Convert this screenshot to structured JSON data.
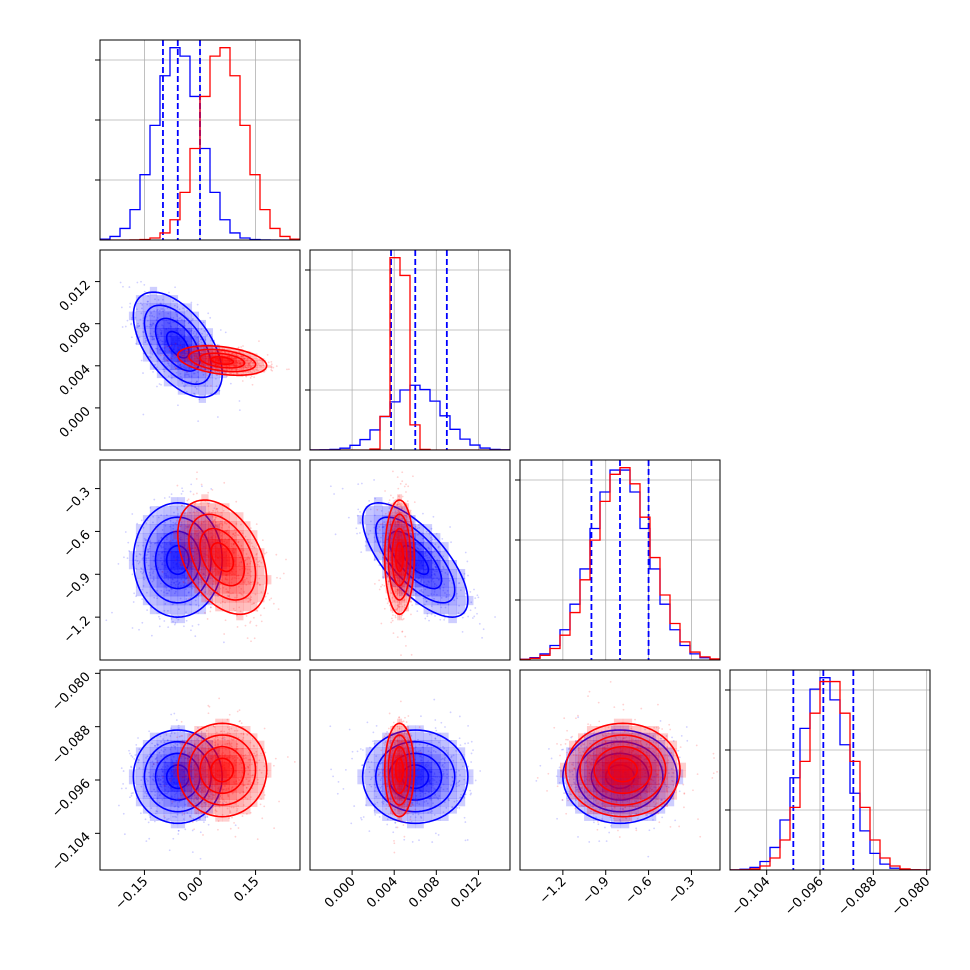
{
  "chart_data": {
    "type": "corner",
    "colors": {
      "blue": "#0000ff",
      "red": "#ff0000"
    },
    "grid": true,
    "parameters": [
      {
        "range": [
          -0.27,
          0.27
        ],
        "ticks": [
          -0.15,
          0.0,
          0.15
        ],
        "tick_labels": [
          "−0.15",
          "0.00",
          "0.15"
        ]
      },
      {
        "range": [
          -0.004,
          0.015
        ],
        "ticks": [
          0.0,
          0.004,
          0.008,
          0.012
        ],
        "tick_labels": [
          "0.000",
          "0.004",
          "0.008",
          "0.012"
        ]
      },
      {
        "range": [
          -1.5,
          -0.1
        ],
        "ticks": [
          -1.2,
          -0.9,
          -0.6,
          -0.3
        ],
        "tick_labels": [
          "−1.2",
          "−0.9",
          "−0.6",
          "−0.3"
        ]
      },
      {
        "range": [
          -0.1095,
          -0.0795
        ],
        "ticks": [
          -0.104,
          -0.096,
          -0.088,
          -0.08
        ],
        "tick_labels": [
          "−0.104",
          "−0.096",
          "−0.088",
          "−0.080"
        ]
      }
    ],
    "series": [
      {
        "color": "blue",
        "mean": [
          -0.06,
          0.006,
          -0.8,
          -0.0955
        ],
        "sigma": [
          0.06,
          0.0025,
          0.2,
          0.0035
        ],
        "corr": [
          [
            1,
            -0.55,
            0,
            0
          ],
          [
            -0.55,
            1,
            -0.7,
            0
          ],
          [
            0,
            -0.7,
            1,
            0
          ],
          [
            0,
            0,
            0,
            1
          ]
        ],
        "quantiles": [
          [
            -0.1,
            -0.06,
            0.0
          ],
          [
            0.0037,
            0.006,
            0.009
          ],
          [
            -1.0,
            -0.8,
            -0.6
          ],
          [
            -0.1,
            -0.0955,
            -0.091
          ]
        ]
      },
      {
        "color": "red",
        "mean": [
          0.06,
          0.0045,
          -0.78,
          -0.0945
        ],
        "sigma": [
          0.06,
          0.0007,
          0.2,
          0.0035
        ],
        "corr": [
          [
            1,
            -0.35,
            -0.4,
            0
          ],
          [
            -0.35,
            1,
            0,
            0
          ],
          [
            -0.4,
            0,
            1,
            0
          ],
          [
            0,
            0,
            0,
            1
          ]
        ]
      }
    ]
  }
}
